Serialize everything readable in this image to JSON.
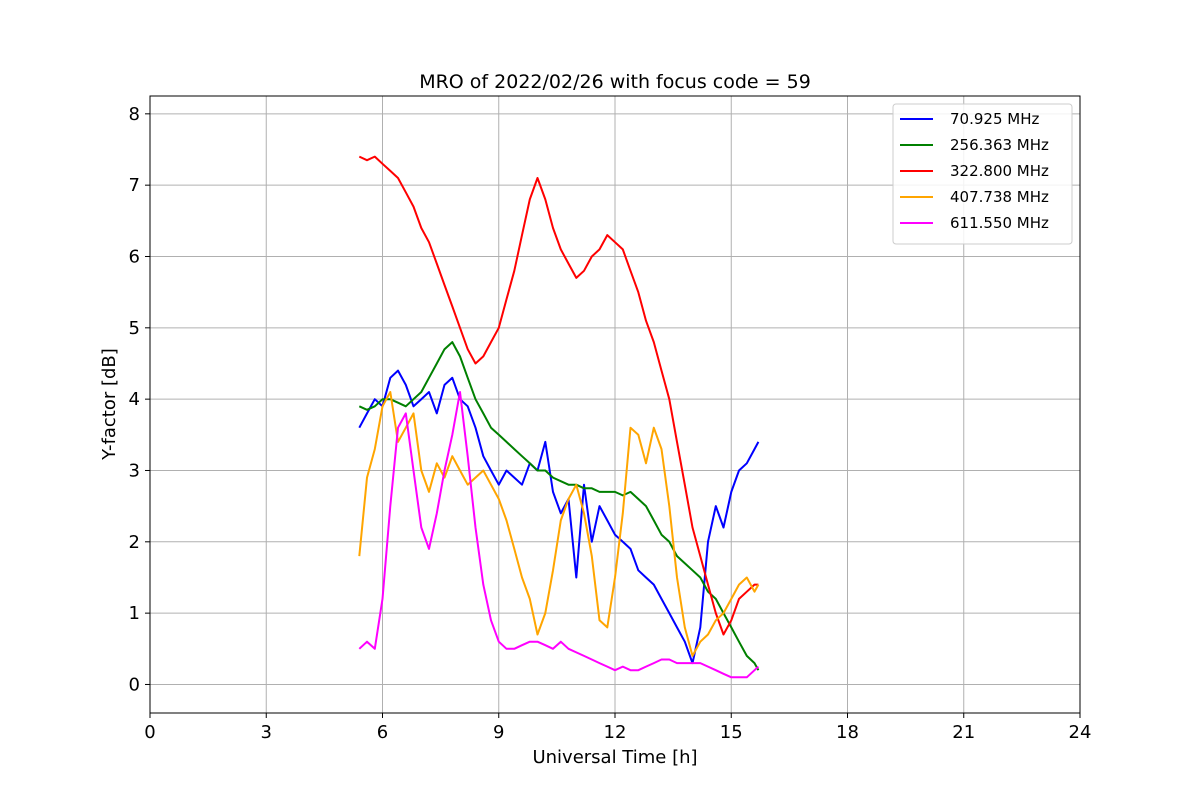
{
  "chart_data": {
    "type": "line",
    "title": "MRO of 2022/02/26 with focus code = 59",
    "xlabel": "Universal Time [h]",
    "ylabel": "Y-factor [dB]",
    "xlim": [
      0,
      24
    ],
    "ylim": [
      -0.4,
      8.25
    ],
    "xticks": [
      0,
      3,
      6,
      9,
      12,
      15,
      18,
      21,
      24
    ],
    "yticks": [
      0,
      1,
      2,
      3,
      4,
      5,
      6,
      7,
      8
    ],
    "grid": true,
    "legend_position": "top-right",
    "series": [
      {
        "name": " 70.925 MHz",
        "color": "#0000ff",
        "x": [
          5.4,
          5.6,
          5.8,
          6.0,
          6.2,
          6.4,
          6.6,
          6.8,
          7.0,
          7.2,
          7.4,
          7.6,
          7.8,
          8.0,
          8.2,
          8.4,
          8.6,
          8.8,
          9.0,
          9.2,
          9.4,
          9.6,
          9.8,
          10.0,
          10.2,
          10.4,
          10.6,
          10.8,
          11.0,
          11.2,
          11.4,
          11.6,
          11.8,
          12.0,
          12.2,
          12.4,
          12.6,
          12.8,
          13.0,
          13.2,
          13.4,
          13.6,
          13.8,
          14.0,
          14.2,
          14.4,
          14.6,
          14.8,
          15.0,
          15.2,
          15.4,
          15.6,
          15.7
        ],
        "y": [
          3.6,
          3.8,
          4.0,
          3.9,
          4.3,
          4.4,
          4.2,
          3.9,
          4.0,
          4.1,
          3.8,
          4.2,
          4.3,
          4.0,
          3.9,
          3.6,
          3.2,
          3.0,
          2.8,
          3.0,
          2.9,
          2.8,
          3.1,
          3.0,
          3.4,
          2.7,
          2.4,
          2.6,
          1.5,
          2.8,
          2.0,
          2.5,
          2.3,
          2.1,
          2.0,
          1.9,
          1.6,
          1.5,
          1.4,
          1.2,
          1.0,
          0.8,
          0.6,
          0.3,
          0.8,
          2.0,
          2.5,
          2.2,
          2.7,
          3.0,
          3.1,
          3.3,
          3.4
        ]
      },
      {
        "name": "256.363 MHz",
        "color": "#008000",
        "x": [
          5.4,
          5.6,
          5.8,
          6.0,
          6.2,
          6.4,
          6.6,
          6.8,
          7.0,
          7.2,
          7.4,
          7.6,
          7.8,
          8.0,
          8.2,
          8.4,
          8.6,
          8.8,
          9.0,
          9.2,
          9.4,
          9.6,
          9.8,
          10.0,
          10.2,
          10.4,
          10.6,
          10.8,
          11.0,
          11.2,
          11.4,
          11.6,
          11.8,
          12.0,
          12.2,
          12.4,
          12.6,
          12.8,
          13.0,
          13.2,
          13.4,
          13.6,
          13.8,
          14.0,
          14.2,
          14.4,
          14.6,
          14.8,
          15.0,
          15.2,
          15.4,
          15.6,
          15.7
        ],
        "y": [
          3.9,
          3.85,
          3.9,
          4.0,
          4.0,
          3.95,
          3.9,
          4.0,
          4.1,
          4.3,
          4.5,
          4.7,
          4.8,
          4.6,
          4.3,
          4.0,
          3.8,
          3.6,
          3.5,
          3.4,
          3.3,
          3.2,
          3.1,
          3.0,
          3.0,
          2.9,
          2.85,
          2.8,
          2.8,
          2.75,
          2.75,
          2.7,
          2.7,
          2.7,
          2.65,
          2.7,
          2.6,
          2.5,
          2.3,
          2.1,
          2.0,
          1.8,
          1.7,
          1.6,
          1.5,
          1.3,
          1.2,
          1.0,
          0.8,
          0.6,
          0.4,
          0.3,
          0.2
        ]
      },
      {
        "name": "322.800 MHz",
        "color": "#ff0000",
        "x": [
          5.4,
          5.6,
          5.8,
          6.0,
          6.2,
          6.4,
          6.6,
          6.8,
          7.0,
          7.2,
          7.4,
          7.6,
          7.8,
          8.0,
          8.2,
          8.4,
          8.6,
          8.8,
          9.0,
          9.2,
          9.4,
          9.6,
          9.8,
          10.0,
          10.2,
          10.4,
          10.6,
          10.8,
          11.0,
          11.2,
          11.4,
          11.6,
          11.8,
          12.0,
          12.2,
          12.4,
          12.6,
          12.8,
          13.0,
          13.2,
          13.4,
          13.6,
          13.8,
          14.0,
          14.2,
          14.4,
          14.6,
          14.8,
          15.0,
          15.2,
          15.4,
          15.6,
          15.7
        ],
        "y": [
          7.4,
          7.35,
          7.4,
          7.3,
          7.2,
          7.1,
          6.9,
          6.7,
          6.4,
          6.2,
          5.9,
          5.6,
          5.3,
          5.0,
          4.7,
          4.5,
          4.6,
          4.8,
          5.0,
          5.4,
          5.8,
          6.3,
          6.8,
          7.1,
          6.8,
          6.4,
          6.1,
          5.9,
          5.7,
          5.8,
          6.0,
          6.1,
          6.3,
          6.2,
          6.1,
          5.8,
          5.5,
          5.1,
          4.8,
          4.4,
          4.0,
          3.4,
          2.8,
          2.2,
          1.8,
          1.4,
          1.0,
          0.7,
          0.9,
          1.2,
          1.3,
          1.4,
          1.4
        ]
      },
      {
        "name": "407.738 MHz",
        "color": "#ffa500",
        "x": [
          5.4,
          5.6,
          5.8,
          6.0,
          6.2,
          6.4,
          6.6,
          6.8,
          7.0,
          7.2,
          7.4,
          7.6,
          7.8,
          8.0,
          8.2,
          8.4,
          8.6,
          8.8,
          9.0,
          9.2,
          9.4,
          9.6,
          9.8,
          10.0,
          10.2,
          10.4,
          10.6,
          10.8,
          11.0,
          11.2,
          11.4,
          11.6,
          11.8,
          12.0,
          12.2,
          12.4,
          12.6,
          12.8,
          13.0,
          13.2,
          13.4,
          13.6,
          13.8,
          14.0,
          14.2,
          14.4,
          14.6,
          14.8,
          15.0,
          15.2,
          15.4,
          15.6,
          15.7
        ],
        "y": [
          1.8,
          2.9,
          3.3,
          3.9,
          4.1,
          3.4,
          3.6,
          3.8,
          3.0,
          2.7,
          3.1,
          2.9,
          3.2,
          3.0,
          2.8,
          2.9,
          3.0,
          2.8,
          2.6,
          2.3,
          1.9,
          1.5,
          1.2,
          0.7,
          1.0,
          1.6,
          2.3,
          2.6,
          2.8,
          2.4,
          1.8,
          0.9,
          0.8,
          1.5,
          2.4,
          3.6,
          3.5,
          3.1,
          3.6,
          3.3,
          2.5,
          1.5,
          0.8,
          0.4,
          0.6,
          0.7,
          0.9,
          1.0,
          1.2,
          1.4,
          1.5,
          1.3,
          1.4
        ]
      },
      {
        "name": "611.550 MHz",
        "color": "#ff00ff",
        "x": [
          5.4,
          5.6,
          5.8,
          6.0,
          6.2,
          6.4,
          6.6,
          6.8,
          7.0,
          7.2,
          7.4,
          7.6,
          7.8,
          8.0,
          8.2,
          8.4,
          8.6,
          8.8,
          9.0,
          9.2,
          9.4,
          9.6,
          9.8,
          10.0,
          10.2,
          10.4,
          10.6,
          10.8,
          11.0,
          11.2,
          11.4,
          11.6,
          11.8,
          12.0,
          12.2,
          12.4,
          12.6,
          12.8,
          13.0,
          13.2,
          13.4,
          13.6,
          13.8,
          14.0,
          14.2,
          14.4,
          14.6,
          14.8,
          15.0,
          15.2,
          15.4,
          15.6,
          15.7
        ],
        "y": [
          0.5,
          0.6,
          0.5,
          1.2,
          2.5,
          3.6,
          3.8,
          3.0,
          2.2,
          1.9,
          2.4,
          3.0,
          3.5,
          4.1,
          3.2,
          2.2,
          1.4,
          0.9,
          0.6,
          0.5,
          0.5,
          0.55,
          0.6,
          0.6,
          0.55,
          0.5,
          0.6,
          0.5,
          0.45,
          0.4,
          0.35,
          0.3,
          0.25,
          0.2,
          0.25,
          0.2,
          0.2,
          0.25,
          0.3,
          0.35,
          0.35,
          0.3,
          0.3,
          0.3,
          0.3,
          0.25,
          0.2,
          0.15,
          0.1,
          0.1,
          0.1,
          0.2,
          0.25
        ]
      }
    ]
  }
}
